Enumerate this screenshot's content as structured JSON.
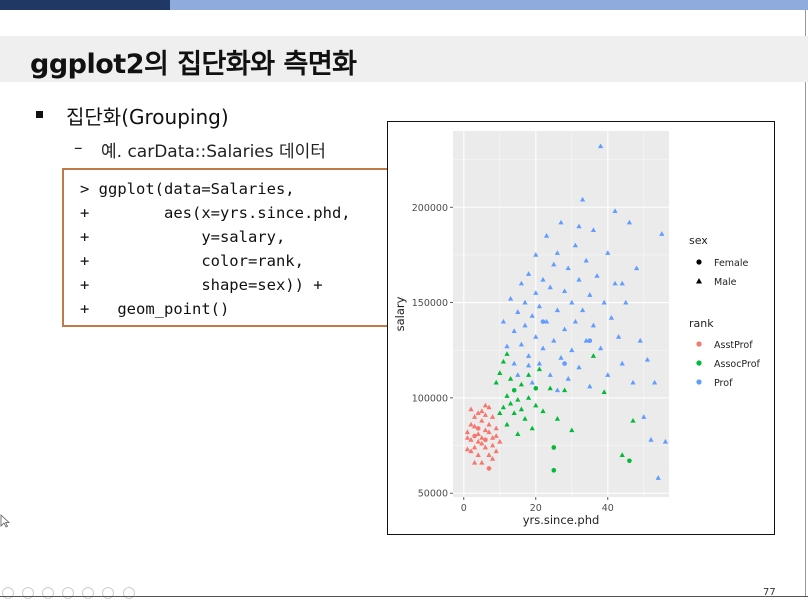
{
  "slide": {
    "title": "ggplot2의 집단화와 측면화",
    "bullet": "집단화(Grouping)",
    "sub_dash": "–",
    "sub_bullet": "예. carData::Salaries 데이터",
    "code_lines": [
      "> ggplot(data=Salaries,",
      "+        aes(x=yrs.since.phd,",
      "+            y=salary,",
      "+            color=rank,",
      "+            shape=sex)) +",
      "+   geom_point()"
    ],
    "page_number": "77"
  },
  "colors": {
    "top_dark": "#1f3864",
    "top_light": "#8faadc",
    "code_border": "#c07a45",
    "panel_bg": "#ebebeb",
    "asst": "#f8766d",
    "assoc": "#00ba38",
    "prof": "#619cff"
  },
  "chart_data": {
    "type": "scatter",
    "xlabel": "yrs.since.phd",
    "ylabel": "salary",
    "xlim": [
      -3,
      57
    ],
    "ylim": [
      48000,
      240000
    ],
    "x_ticks": [
      0,
      20,
      40
    ],
    "y_ticks": [
      50000,
      100000,
      150000,
      200000
    ],
    "y_tick_labels": [
      "50000",
      "100000",
      "150000",
      "200000"
    ],
    "legend_placement": "right",
    "legend_sex": {
      "title": "sex",
      "items": [
        {
          "label": "Female",
          "shape": "circle"
        },
        {
          "label": "Male",
          "shape": "triangle"
        }
      ]
    },
    "legend_rank": {
      "title": "rank",
      "items": [
        {
          "label": "AsstProf",
          "color": "#f8766d"
        },
        {
          "label": "AssocProf",
          "color": "#00ba38"
        },
        {
          "label": "Prof",
          "color": "#619cff"
        }
      ]
    },
    "series": [
      {
        "rank": "AsstProf",
        "color": "#f8766d",
        "points": [
          [
            1,
            79000,
            "t"
          ],
          [
            1,
            82000,
            "t"
          ],
          [
            2,
            78000,
            "t"
          ],
          [
            2,
            86000,
            "t"
          ],
          [
            2,
            72000,
            "t"
          ],
          [
            3,
            80000,
            "c"
          ],
          [
            3,
            90000,
            "t"
          ],
          [
            3,
            74000,
            "t"
          ],
          [
            4,
            81000,
            "t"
          ],
          [
            4,
            92000,
            "t"
          ],
          [
            4,
            70000,
            "t"
          ],
          [
            4,
            84000,
            "c"
          ],
          [
            5,
            76000,
            "t"
          ],
          [
            5,
            88000,
            "t"
          ],
          [
            5,
            79000,
            "t"
          ],
          [
            5,
            66000,
            "t"
          ],
          [
            6,
            83000,
            "t"
          ],
          [
            6,
            74000,
            "t"
          ],
          [
            6,
            91000,
            "t"
          ],
          [
            6,
            78000,
            "c"
          ],
          [
            7,
            82000,
            "t"
          ],
          [
            7,
            70000,
            "t"
          ],
          [
            7,
            86000,
            "t"
          ],
          [
            7,
            63000,
            "c"
          ],
          [
            8,
            79000,
            "t"
          ],
          [
            8,
            90000,
            "t"
          ],
          [
            8,
            75000,
            "t"
          ],
          [
            9,
            84000,
            "t"
          ],
          [
            9,
            72000,
            "t"
          ],
          [
            9,
            80000,
            "t"
          ],
          [
            3,
            66000,
            "t"
          ],
          [
            2,
            94000,
            "t"
          ],
          [
            6,
            96000,
            "t"
          ],
          [
            8,
            68000,
            "t"
          ],
          [
            4,
            77000,
            "t"
          ],
          [
            5,
            93000,
            "t"
          ],
          [
            10,
            77000,
            "t"
          ],
          [
            1,
            73000,
            "t"
          ],
          [
            7,
            95000,
            "t"
          ],
          [
            3,
            85000,
            "t"
          ]
        ]
      },
      {
        "rank": "AssocProf",
        "color": "#00ba38",
        "points": [
          [
            9,
            108000,
            "t"
          ],
          [
            10,
            92000,
            "t"
          ],
          [
            10,
            113000,
            "t"
          ],
          [
            11,
            95000,
            "t"
          ],
          [
            11,
            119000,
            "t"
          ],
          [
            12,
            101000,
            "t"
          ],
          [
            12,
            86000,
            "t"
          ],
          [
            13,
            97000,
            "t"
          ],
          [
            13,
            110000,
            "t"
          ],
          [
            14,
            92000,
            "t"
          ],
          [
            14,
            104000,
            "c"
          ],
          [
            15,
            99000,
            "t"
          ],
          [
            15,
            81000,
            "t"
          ],
          [
            16,
            94000,
            "t"
          ],
          [
            16,
            107000,
            "t"
          ],
          [
            17,
            89000,
            "t"
          ],
          [
            18,
            100000,
            "t"
          ],
          [
            18,
            112000,
            "t"
          ],
          [
            19,
            84000,
            "t"
          ],
          [
            20,
            96000,
            "t"
          ],
          [
            21,
            115000,
            "t"
          ],
          [
            22,
            93000,
            "t"
          ],
          [
            24,
            105000,
            "t"
          ],
          [
            25,
            74000,
            "c"
          ],
          [
            26,
            89000,
            "t"
          ],
          [
            28,
            104000,
            "t"
          ],
          [
            30,
            83000,
            "t"
          ],
          [
            36,
            122000,
            "t"
          ],
          [
            39,
            103000,
            "t"
          ],
          [
            44,
            70000,
            "t"
          ],
          [
            46,
            67000,
            "c"
          ],
          [
            47,
            88000,
            "t"
          ],
          [
            12,
            123000,
            "t"
          ],
          [
            20,
            105000,
            "c"
          ],
          [
            25,
            62000,
            "c"
          ]
        ]
      },
      {
        "rank": "Prof",
        "color": "#619cff",
        "points": [
          [
            11,
            140000,
            "t"
          ],
          [
            12,
            127000,
            "t"
          ],
          [
            13,
            152000,
            "t"
          ],
          [
            14,
            118000,
            "t"
          ],
          [
            14,
            135000,
            "t"
          ],
          [
            15,
            145000,
            "t"
          ],
          [
            15,
            112000,
            "t"
          ],
          [
            16,
            160000,
            "t"
          ],
          [
            16,
            128000,
            "t"
          ],
          [
            17,
            138000,
            "t"
          ],
          [
            17,
            150000,
            "t"
          ],
          [
            18,
            122000,
            "t"
          ],
          [
            18,
            165000,
            "t"
          ],
          [
            19,
            143000,
            "t"
          ],
          [
            19,
            108000,
            "t"
          ],
          [
            20,
            175000,
            "t"
          ],
          [
            20,
            132000,
            "t"
          ],
          [
            20,
            155000,
            "t"
          ],
          [
            21,
            118000,
            "t"
          ],
          [
            21,
            148000,
            "t"
          ],
          [
            22,
            162000,
            "t"
          ],
          [
            22,
            126000,
            "t"
          ],
          [
            23,
            185000,
            "t"
          ],
          [
            23,
            140000,
            "t"
          ],
          [
            24,
            112000,
            "t"
          ],
          [
            24,
            158000,
            "t"
          ],
          [
            25,
            170000,
            "t"
          ],
          [
            25,
            130000,
            "t"
          ],
          [
            26,
            146000,
            "t"
          ],
          [
            26,
            104000,
            "t"
          ],
          [
            27,
            192000,
            "t"
          ],
          [
            27,
            121000,
            "t"
          ],
          [
            28,
            156000,
            "t"
          ],
          [
            28,
            136000,
            "t"
          ],
          [
            29,
            168000,
            "t"
          ],
          [
            29,
            110000,
            "t"
          ],
          [
            30,
            150000,
            "t"
          ],
          [
            30,
            125000,
            "t"
          ],
          [
            31,
            180000,
            "t"
          ],
          [
            31,
            140000,
            "t"
          ],
          [
            32,
            162000,
            "t"
          ],
          [
            32,
            116000,
            "t"
          ],
          [
            33,
            146000,
            "t"
          ],
          [
            33,
            204000,
            "t"
          ],
          [
            34,
            130000,
            "t"
          ],
          [
            34,
            172000,
            "t"
          ],
          [
            35,
            154000,
            "t"
          ],
          [
            35,
            106000,
            "t"
          ],
          [
            36,
            188000,
            "t"
          ],
          [
            36,
            138000,
            "t"
          ],
          [
            37,
            164000,
            "t"
          ],
          [
            38,
            232000,
            "t"
          ],
          [
            38,
            126000,
            "t"
          ],
          [
            39,
            150000,
            "t"
          ],
          [
            40,
            176000,
            "t"
          ],
          [
            40,
            112000,
            "t"
          ],
          [
            41,
            142000,
            "t"
          ],
          [
            42,
            198000,
            "t"
          ],
          [
            42,
            160000,
            "t"
          ],
          [
            43,
            132000,
            "t"
          ],
          [
            44,
            118000,
            "t"
          ],
          [
            45,
            150000,
            "t"
          ],
          [
            46,
            192000,
            "t"
          ],
          [
            47,
            108000,
            "t"
          ],
          [
            48,
            168000,
            "t"
          ],
          [
            49,
            130000,
            "t"
          ],
          [
            50,
            90000,
            "t"
          ],
          [
            51,
            120000,
            "t"
          ],
          [
            52,
            78000,
            "t"
          ],
          [
            53,
            108000,
            "t"
          ],
          [
            55,
            186000,
            "t"
          ],
          [
            56,
            77000,
            "t"
          ],
          [
            54,
            58000,
            "t"
          ],
          [
            35,
            130000,
            "c"
          ],
          [
            28,
            118000,
            "c"
          ],
          [
            22,
            140000,
            "c"
          ],
          [
            18,
            117000,
            "t"
          ],
          [
            26,
            176000,
            "t"
          ],
          [
            32,
            190000,
            "t"
          ],
          [
            44,
            160000,
            "t"
          ]
        ]
      }
    ]
  }
}
